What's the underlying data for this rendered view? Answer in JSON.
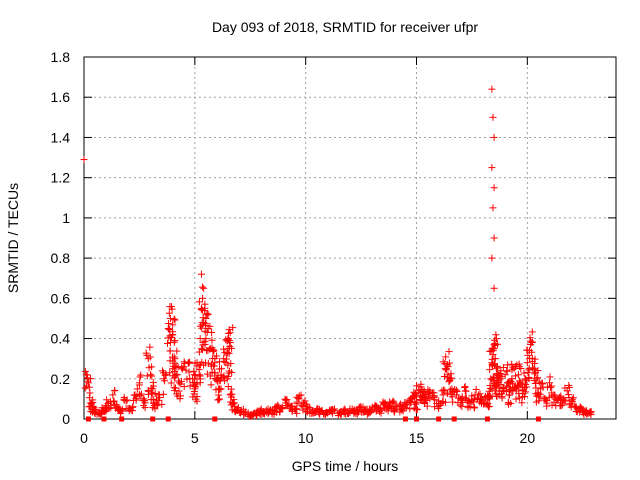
{
  "chart_data": {
    "type": "scatter",
    "title": "Day 093 of 2018, SRMTID for receiver ufpr",
    "xlabel": "GPS time / hours",
    "ylabel": "SRMTID / TECUs",
    "xlim": [
      0,
      24
    ],
    "ylim": [
      0,
      1.8
    ],
    "xticks": [
      0,
      5,
      10,
      15,
      20
    ],
    "xtick_labels": [
      "0",
      "5",
      "10",
      "15",
      "20"
    ],
    "yticks": [
      0,
      0.2,
      0.4,
      0.6,
      0.8,
      1,
      1.2,
      1.4,
      1.6,
      1.8
    ],
    "ytick_labels": [
      "0",
      "0.2",
      "0.4",
      "0.6",
      "0.8",
      "1",
      "1.2",
      "1.4",
      "1.6",
      "1.8"
    ],
    "grid": true,
    "marker": "+",
    "color": "#ff0000",
    "series": [
      {
        "name": "SRMTID",
        "x": [
          0.0,
          0.1,
          0.2,
          0.3,
          0.4,
          0.5,
          0.7,
          0.9,
          1.1,
          1.3,
          1.5,
          1.7,
          1.9,
          2.1,
          2.3,
          2.5,
          2.7,
          2.9,
          3.0,
          3.1,
          3.2,
          3.4,
          3.6,
          3.8,
          3.9,
          4.0,
          4.1,
          4.2,
          4.3,
          4.5,
          4.7,
          4.9,
          5.0,
          5.1,
          5.2,
          5.3,
          5.4,
          5.5,
          5.6,
          5.7,
          5.8,
          5.9,
          6.0,
          6.1,
          6.2,
          6.3,
          6.4,
          6.5,
          6.6,
          6.7,
          6.9,
          7.1,
          7.3,
          7.5,
          7.7,
          7.9,
          8.1,
          8.3,
          8.5,
          8.7,
          8.9,
          9.1,
          9.3,
          9.5,
          9.7,
          9.9,
          10.1,
          10.3,
          10.5,
          10.7,
          10.9,
          11.1,
          11.3,
          11.5,
          11.7,
          11.9,
          12.1,
          12.3,
          12.5,
          12.7,
          12.9,
          13.1,
          13.3,
          13.5,
          13.7,
          13.9,
          14.1,
          14.3,
          14.5,
          14.7,
          14.9,
          15.0,
          15.1,
          15.2,
          15.3,
          15.4,
          15.6,
          15.8,
          16.0,
          16.2,
          16.3,
          16.4,
          16.5,
          16.6,
          16.8,
          17.0,
          17.2,
          17.4,
          17.6,
          17.8,
          18.0,
          18.2,
          18.3,
          18.35,
          18.4,
          18.45,
          18.5,
          18.55,
          18.6,
          18.65,
          18.7,
          18.8,
          18.9,
          19.0,
          19.1,
          19.2,
          19.3,
          19.4,
          19.5,
          19.6,
          19.7,
          19.8,
          19.9,
          20.0,
          20.1,
          20.2,
          20.3,
          20.4,
          20.5,
          20.6,
          20.8,
          21.0,
          21.2,
          21.4,
          21.6,
          21.8,
          22.0,
          22.2,
          22.4,
          22.6,
          22.8,
          18.4,
          18.45,
          18.5,
          18.4,
          18.5,
          18.45,
          18.5,
          18.4,
          18.5,
          5.3,
          5.4,
          5.35,
          5.5,
          3.9,
          4.0,
          6.5,
          6.6
        ],
        "y": [
          1.29,
          0.22,
          0.18,
          0.08,
          0.05,
          0.04,
          0.03,
          0.05,
          0.08,
          0.12,
          0.06,
          0.04,
          0.09,
          0.05,
          0.12,
          0.18,
          0.1,
          0.3,
          0.22,
          0.15,
          0.08,
          0.12,
          0.2,
          0.45,
          0.38,
          0.25,
          0.3,
          0.22,
          0.18,
          0.26,
          0.28,
          0.2,
          0.15,
          0.28,
          0.22,
          0.55,
          0.48,
          0.4,
          0.45,
          0.35,
          0.3,
          0.28,
          0.2,
          0.15,
          0.25,
          0.3,
          0.28,
          0.35,
          0.12,
          0.08,
          0.05,
          0.04,
          0.03,
          0.02,
          0.03,
          0.04,
          0.03,
          0.05,
          0.04,
          0.06,
          0.05,
          0.08,
          0.06,
          0.05,
          0.1,
          0.08,
          0.06,
          0.04,
          0.05,
          0.04,
          0.03,
          0.04,
          0.05,
          0.03,
          0.04,
          0.03,
          0.05,
          0.04,
          0.06,
          0.04,
          0.05,
          0.06,
          0.05,
          0.07,
          0.06,
          0.08,
          0.05,
          0.06,
          0.07,
          0.09,
          0.11,
          0.08,
          0.14,
          0.16,
          0.12,
          0.1,
          0.13,
          0.11,
          0.09,
          0.12,
          0.25,
          0.27,
          0.2,
          0.15,
          0.12,
          0.1,
          0.14,
          0.08,
          0.1,
          0.12,
          0.09,
          0.11,
          0.1,
          0.2,
          0.28,
          0.32,
          0.35,
          0.3,
          0.25,
          0.22,
          0.18,
          0.2,
          0.15,
          0.22,
          0.18,
          0.12,
          0.2,
          0.25,
          0.15,
          0.22,
          0.18,
          0.14,
          0.2,
          0.28,
          0.3,
          0.38,
          0.25,
          0.2,
          0.12,
          0.15,
          0.1,
          0.18,
          0.12,
          0.1,
          0.08,
          0.14,
          0.09,
          0.06,
          0.05,
          0.04,
          0.03,
          1.64,
          1.5,
          1.4,
          1.25,
          1.15,
          1.05,
          0.9,
          0.8,
          0.65,
          0.72,
          0.65,
          0.6,
          0.5,
          0.5,
          0.42,
          0.4,
          0.38
        ]
      }
    ],
    "zero_marks_x": [
      0.2,
      0.9,
      1.7,
      3.1,
      3.8,
      5.9,
      14.5,
      15.0,
      16.0,
      16.7,
      18.2,
      20.5
    ]
  }
}
